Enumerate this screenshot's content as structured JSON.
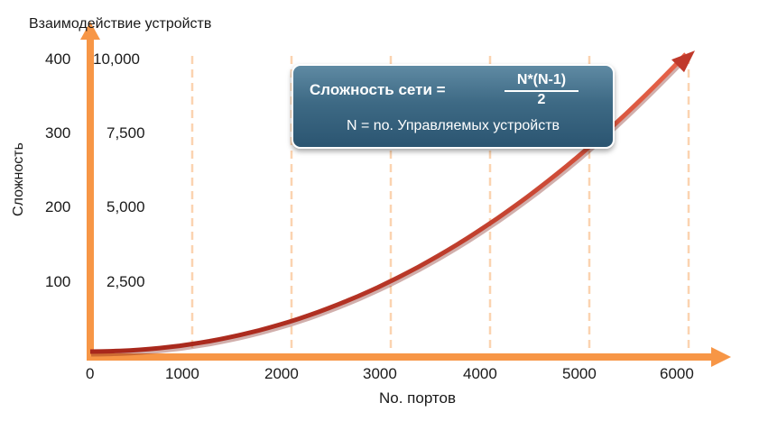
{
  "title_top": "Взаимодействие   устройств",
  "y_axis_label": "Сложность",
  "x_axis_label": "No. портов",
  "colors": {
    "axis": "#f79646",
    "grid": "#fbd3b0",
    "curve": "#c0392b"
  },
  "formula": {
    "left": "Сложность сети =",
    "numerator": "N*(N-1)",
    "denominator": "2",
    "note": "N = no. Управляемых устройств"
  },
  "chart_data": {
    "type": "line",
    "title": "",
    "xlabel": "No. портов",
    "ylabel": "Сложность",
    "x_ticks": [
      "0",
      "1000",
      "2000",
      "3000",
      "4000",
      "5000",
      "6000"
    ],
    "y_ticks_left": [
      "100",
      "200",
      "300",
      "400"
    ],
    "y_ticks_right": [
      "2,500",
      "5,000",
      "7,500",
      "10,000"
    ],
    "xlim": [
      0,
      6000
    ],
    "ylim": [
      0,
      400
    ],
    "grid": "vertical dashed",
    "series": [
      {
        "x": [
          0,
          1000,
          2000,
          3000,
          4000,
          5000,
          6000
        ],
        "y": [
          0,
          20,
          57,
          110,
          178,
          262,
          395
        ]
      }
    ]
  }
}
